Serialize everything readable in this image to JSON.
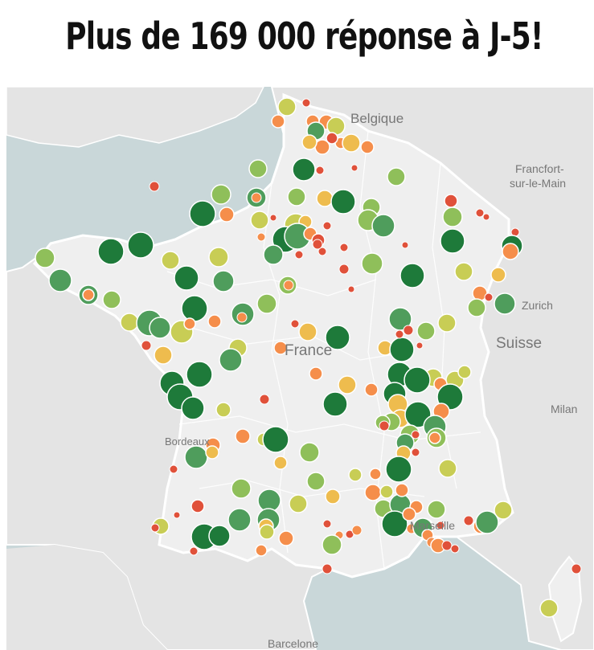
{
  "header": {
    "title": "Plus de 169 000 réponse à J-5!"
  },
  "map": {
    "sea_color": "#c9d7d9",
    "land_color": "#efefef",
    "outside_land_color": "#e4e4e4",
    "place_labels": {
      "belgique": "Belgique",
      "francfort": "Francfort-",
      "francfort2": "sur-le-Main",
      "zurich": "Zurich",
      "suisse": "Suisse",
      "milan": "Milan",
      "france": "France",
      "bordeaux": "Bordeaux",
      "marseille": "Marseille",
      "barcelone": "Barcelone"
    },
    "category_colors": {
      "very_high": "#1e7a3a",
      "high": "#4f9d5c",
      "medium_high": "#8fbf5a",
      "medium": "#c8cd55",
      "medium_low": "#eebc4e",
      "low": "#f58e4b",
      "very_low": "#e0513a"
    }
  }
}
